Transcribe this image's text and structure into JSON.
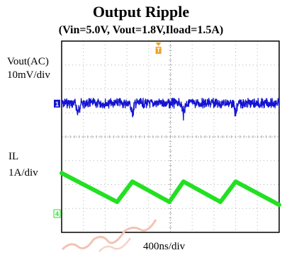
{
  "title": "Output Ripple",
  "subtitle": "(Vin=5.0V, Vout=1.8V,Iload=1.5A)",
  "labels": {
    "ch1_name": "Vout(AC)",
    "ch1_scale": "10mV/div",
    "ch2_name": "IL",
    "ch2_scale": "1A/div",
    "time_scale": "400ns/div",
    "trigger_marker": "T",
    "ch1_marker": "1",
    "ch2_marker": "4"
  },
  "colors": {
    "ch1": "#1414d2",
    "ch2": "#22e022",
    "trigger": "#f0a020",
    "grid": "#b4b4b4",
    "frame": "#000000"
  },
  "chart_data": {
    "type": "line",
    "title": "Output Ripple",
    "subtitle": "(Vin=5.0V, Vout=1.8V,Iload=1.5A)",
    "xlabel": "400ns/div",
    "grid": true,
    "divisions": {
      "x": 10,
      "y": 8
    },
    "series": [
      {
        "name": "Vout(AC)",
        "scale": "10mV/div",
        "baseline_div": 2.6,
        "shape": "ripple",
        "noise_band_div": 0.45,
        "spike_times_div": [
          0.75,
          3.25,
          5.6,
          8.0
        ],
        "spike_depth_div": 0.6
      },
      {
        "name": "IL",
        "scale": "1A/div",
        "shape": "triangle",
        "center_div": 6.3,
        "peak_to_peak_div": 0.85,
        "peak_times_div": [
          0.75,
          3.25,
          5.6,
          8.0
        ],
        "trough_times_div": [
          2.55,
          4.95,
          7.3,
          9.75
        ]
      }
    ]
  }
}
